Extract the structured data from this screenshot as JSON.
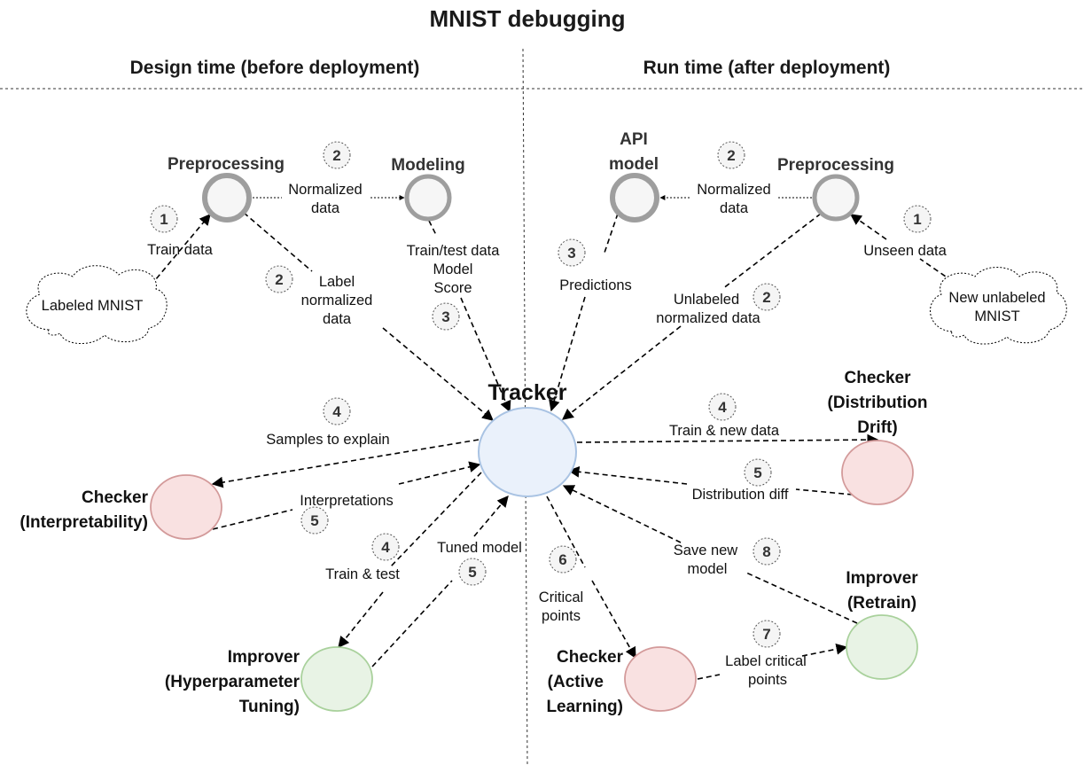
{
  "title": "MNIST debugging",
  "sections": {
    "design_time": "Design time (before deployment)",
    "run_time": "Run time (after deployment)"
  },
  "nodes": {
    "tracker": "Tracker",
    "design_preprocessing": "Preprocessing",
    "modeling": "Modeling",
    "api_model": [
      "API",
      "model"
    ],
    "run_preprocessing": "Preprocessing",
    "labeled_mnist": "Labeled MNIST",
    "new_unlabeled_mnist": [
      "New unlabeled",
      "MNIST"
    ],
    "checker_interpretability": [
      "Checker",
      "(Interpretability)"
    ],
    "improver_hyperparameter": [
      "Improver",
      "(Hyperparameter",
      "Tuning)"
    ],
    "checker_drift": [
      "Checker",
      "(Distribution",
      "Drift)"
    ],
    "checker_active_learning": [
      "Checker",
      "(Active",
      "Learning)"
    ],
    "improver_retrain": [
      "Improver",
      "(Retrain)"
    ]
  },
  "edges": {
    "train_data": {
      "label": [
        "Train data"
      ],
      "step": "1"
    },
    "normalized_data_design": {
      "label": [
        "Normalized",
        "data"
      ],
      "step": "2"
    },
    "label_normalized_data": {
      "label": [
        "Label",
        "normalized",
        "data"
      ],
      "step": "2"
    },
    "train_test_model_score": {
      "label": [
        "Train/test data",
        "Model",
        "Score"
      ],
      "step": "3"
    },
    "unseen_data": {
      "label": [
        "Unseen data"
      ],
      "step": "1"
    },
    "normalized_data_run": {
      "label": [
        "Normalized",
        "data"
      ],
      "step": "2"
    },
    "predictions": {
      "label": [
        "Predictions"
      ],
      "step": "3"
    },
    "unlabeled_normalized_data": {
      "label": [
        "Unlabeled",
        "normalized data"
      ],
      "step": "2"
    },
    "samples_to_explain": {
      "label": [
        "Samples to explain"
      ],
      "step": "4"
    },
    "interpretations": {
      "label": [
        "Interpretations"
      ],
      "step": "5"
    },
    "train_and_test": {
      "label": [
        "Train & test"
      ],
      "step": "4"
    },
    "tuned_model": {
      "label": [
        "Tuned model"
      ],
      "step": "5"
    },
    "train_new_data": {
      "label": [
        "Train & new data"
      ],
      "step": "4"
    },
    "distribution_diff": {
      "label": [
        "Distribution diff"
      ],
      "step": "5"
    },
    "critical_points": {
      "label": [
        "Critical",
        "points"
      ],
      "step": "6"
    },
    "label_critical_points": {
      "label": [
        "Label critical",
        "points"
      ],
      "step": "7"
    },
    "save_new_model": {
      "label": [
        "Save new",
        "model"
      ],
      "step": "8"
    }
  },
  "colors": {
    "tracker_fill": "#eaf1fb",
    "tracker_stroke": "#a9c3e3",
    "checker_fill": "#f9e1e1",
    "checker_stroke": "#d39a9a",
    "improver_fill": "#e8f3e5",
    "improver_stroke": "#a9d19c",
    "process_stroke": "#9e9e9e",
    "badge_fill": "#f5f5f5"
  }
}
